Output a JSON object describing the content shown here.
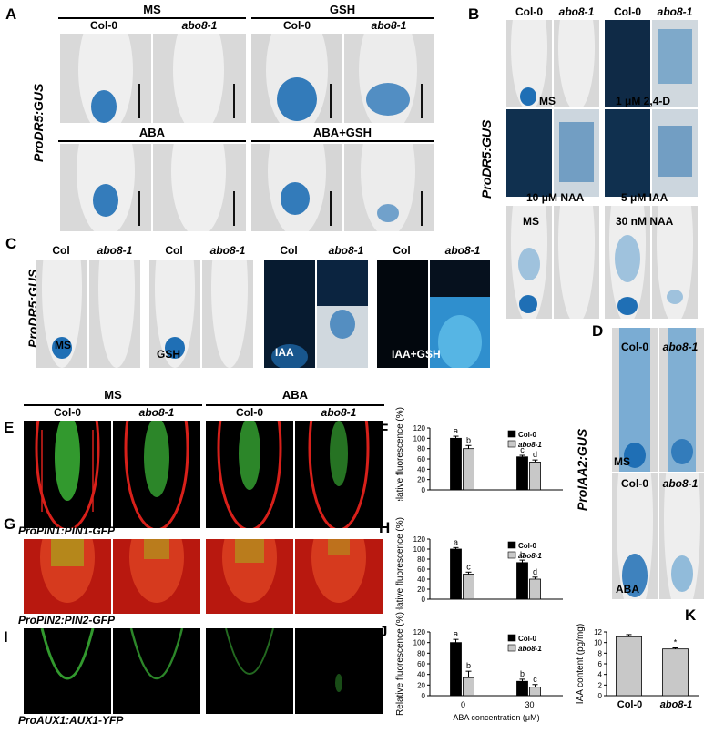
{
  "panels": {
    "A": {
      "label": "A",
      "groups": [
        "MS",
        "GSH",
        "ABA",
        "ABA+GSH"
      ],
      "genotypes": [
        "Col-0",
        "abo8-1"
      ],
      "reporter": "ProDR5:GUS"
    },
    "B": {
      "label": "B",
      "genotypes": [
        "Col-0",
        "abo8-1",
        "Col-0",
        "abo8-1"
      ],
      "treatments": [
        "MS",
        "1 μM 2,4-D",
        "10 μM NAA",
        "5 μM IAA",
        "MS",
        "30 nM NAA"
      ],
      "reporter": "ProDR5:GUS"
    },
    "C": {
      "label": "C",
      "genotypes": [
        "Col",
        "abo8-1",
        "Col",
        "abo8-1",
        "Col",
        "abo8-1",
        "Col",
        "abo8-1"
      ],
      "treatments": [
        "MS",
        "GSH",
        "IAA",
        "IAA+GSH"
      ],
      "reporter": "ProDR5:GUS"
    },
    "D": {
      "label": "D",
      "genotypes": [
        "Col-0",
        "abo8-1"
      ],
      "treatments": [
        "MS",
        "ABA"
      ],
      "reporter": "ProIAA2:GUS"
    },
    "E": {
      "label": "E",
      "groups": [
        "MS",
        "ABA"
      ],
      "genotypes": [
        "Col-0",
        "abo8-1",
        "Col-0",
        "abo8-1"
      ]
    },
    "G": {
      "label": "G",
      "reporter": "ProPIN1:PIN1-GFP"
    },
    "Gb": {
      "reporter": "ProPIN2:PIN2-GFP"
    },
    "I": {
      "label": "I",
      "reporter": "ProAUX1:AUX1-YFP"
    },
    "F": {
      "label": "F"
    },
    "H": {
      "label": "H"
    },
    "J": {
      "label": "J"
    },
    "K": {
      "label": "K"
    }
  },
  "colors": {
    "gus_blue": "#1f6fb5",
    "col0_bar": "#000000",
    "abo8_bar": "#c8c8c8",
    "pi_red": "#d8201a",
    "gfp_green": "#3fbf3a"
  },
  "chart_data": [
    {
      "id": "F",
      "type": "bar",
      "categories": [
        "",
        ""
      ],
      "series": [
        {
          "name": "Col-0",
          "values": [
            100,
            64
          ],
          "errors": [
            4,
            3
          ],
          "letters": [
            "a",
            "c"
          ]
        },
        {
          "name": "abo8-1",
          "values": [
            80,
            54
          ],
          "errors": [
            6,
            4
          ],
          "letters": [
            "b",
            "d"
          ]
        }
      ],
      "ylabel": "Relative fluorescence (%)",
      "yticks": [
        "0",
        "20",
        "40",
        "60",
        "80",
        "100",
        "120"
      ],
      "ylim": [
        0,
        120
      ],
      "legend": "top-right"
    },
    {
      "id": "H",
      "type": "bar",
      "categories": [
        "",
        ""
      ],
      "series": [
        {
          "name": "Col-0",
          "values": [
            100,
            73
          ],
          "errors": [
            3,
            5
          ],
          "letters": [
            "a",
            "b"
          ]
        },
        {
          "name": "abo8-1",
          "values": [
            50,
            40
          ],
          "errors": [
            4,
            4
          ],
          "letters": [
            "c",
            "d"
          ]
        }
      ],
      "ylabel": "Relative fluorescence (%)",
      "yticks": [
        "0",
        "20",
        "40",
        "60",
        "80",
        "100",
        "120"
      ],
      "ylim": [
        0,
        120
      ],
      "legend": "top-right"
    },
    {
      "id": "J",
      "type": "bar",
      "categories": [
        "0",
        "30"
      ],
      "series": [
        {
          "name": "Col-0",
          "values": [
            100,
            27
          ],
          "errors": [
            6,
            4
          ],
          "letters": [
            "a",
            "b"
          ]
        },
        {
          "name": "abo8-1",
          "values": [
            34,
            16
          ],
          "errors": [
            12,
            5
          ],
          "letters": [
            "b",
            "c"
          ]
        }
      ],
      "xlabel": "ABA concentration (μM)",
      "ylabel": "Relative fluorescence (%)",
      "yticks": [
        "0",
        "20",
        "40",
        "60",
        "80",
        "100",
        "120"
      ],
      "ylim": [
        0,
        120
      ],
      "legend": "top-right"
    },
    {
      "id": "K",
      "type": "bar",
      "categories": [
        "Col-0",
        "abo8-1"
      ],
      "series": [
        {
          "name": "",
          "values": [
            11.1,
            8.8
          ],
          "errors": [
            0.4,
            0.2
          ],
          "letters": [
            "",
            "*"
          ]
        }
      ],
      "ylabel": "IAA content (pg/mg)",
      "yticks": [
        "0",
        "2",
        "4",
        "6",
        "8",
        "10",
        "12"
      ],
      "ylim": [
        0,
        12
      ]
    }
  ]
}
